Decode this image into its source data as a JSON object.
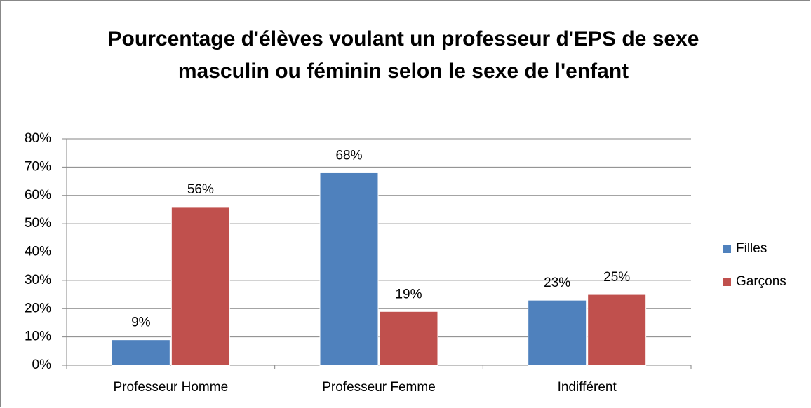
{
  "chart_data": {
    "type": "bar",
    "title": [
      "Pourcentage d'élèves voulant un professeur d'EPS de sexe",
      "masculin ou féminin selon le sexe de l'enfant"
    ],
    "categories": [
      "Professeur Homme",
      "Professeur Femme",
      "Indifférent"
    ],
    "series": [
      {
        "name": "Filles",
        "color": "#4f81bd",
        "values": [
          9,
          68,
          23
        ],
        "value_labels": [
          "9%",
          "68%",
          "23%"
        ]
      },
      {
        "name": "Garçons",
        "color": "#c0504d",
        "values": [
          56,
          19,
          25
        ],
        "value_labels": [
          "56%",
          "19%",
          "25%"
        ]
      }
    ],
    "ylim": [
      0,
      80
    ],
    "yticks": [
      {
        "value": 0,
        "label": "0%"
      },
      {
        "value": 10,
        "label": "10%"
      },
      {
        "value": 20,
        "label": "20%"
      },
      {
        "value": 30,
        "label": "30%"
      },
      {
        "value": 40,
        "label": "40%"
      },
      {
        "value": 50,
        "label": "50%"
      },
      {
        "value": 60,
        "label": "60%"
      },
      {
        "value": 70,
        "label": "70%"
      },
      {
        "value": 80,
        "label": "80%"
      }
    ],
    "grid": true,
    "legend": "right"
  }
}
